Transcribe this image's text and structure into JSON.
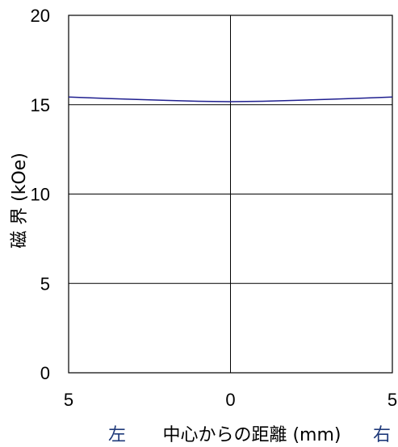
{
  "chart_data": {
    "type": "line",
    "title": "",
    "ylabel": "磁 界 (kOe)",
    "xlabel": "中心からの距離 (mm)",
    "x_left_label": "左",
    "x_right_label": "右",
    "side_label_color": "#1F3A7A",
    "series_color": "#1F1F8F",
    "ylim": [
      0,
      20
    ],
    "xlim": [
      -5,
      5
    ],
    "y_ticks": [
      0,
      5,
      10,
      15,
      20
    ],
    "y_tick_labels": [
      "0",
      "5",
      "10",
      "15",
      "20"
    ],
    "x_ticks": [
      -5,
      0,
      5
    ],
    "x_tick_labels": [
      "5",
      "0",
      "5"
    ],
    "grid": true,
    "series": [
      {
        "x": [
          -5,
          -4,
          -3,
          -2,
          -1,
          0,
          1,
          2,
          3,
          4,
          5
        ],
        "y": [
          15.43,
          15.36,
          15.3,
          15.24,
          15.19,
          15.17,
          15.19,
          15.24,
          15.3,
          15.36,
          15.43
        ]
      }
    ]
  }
}
